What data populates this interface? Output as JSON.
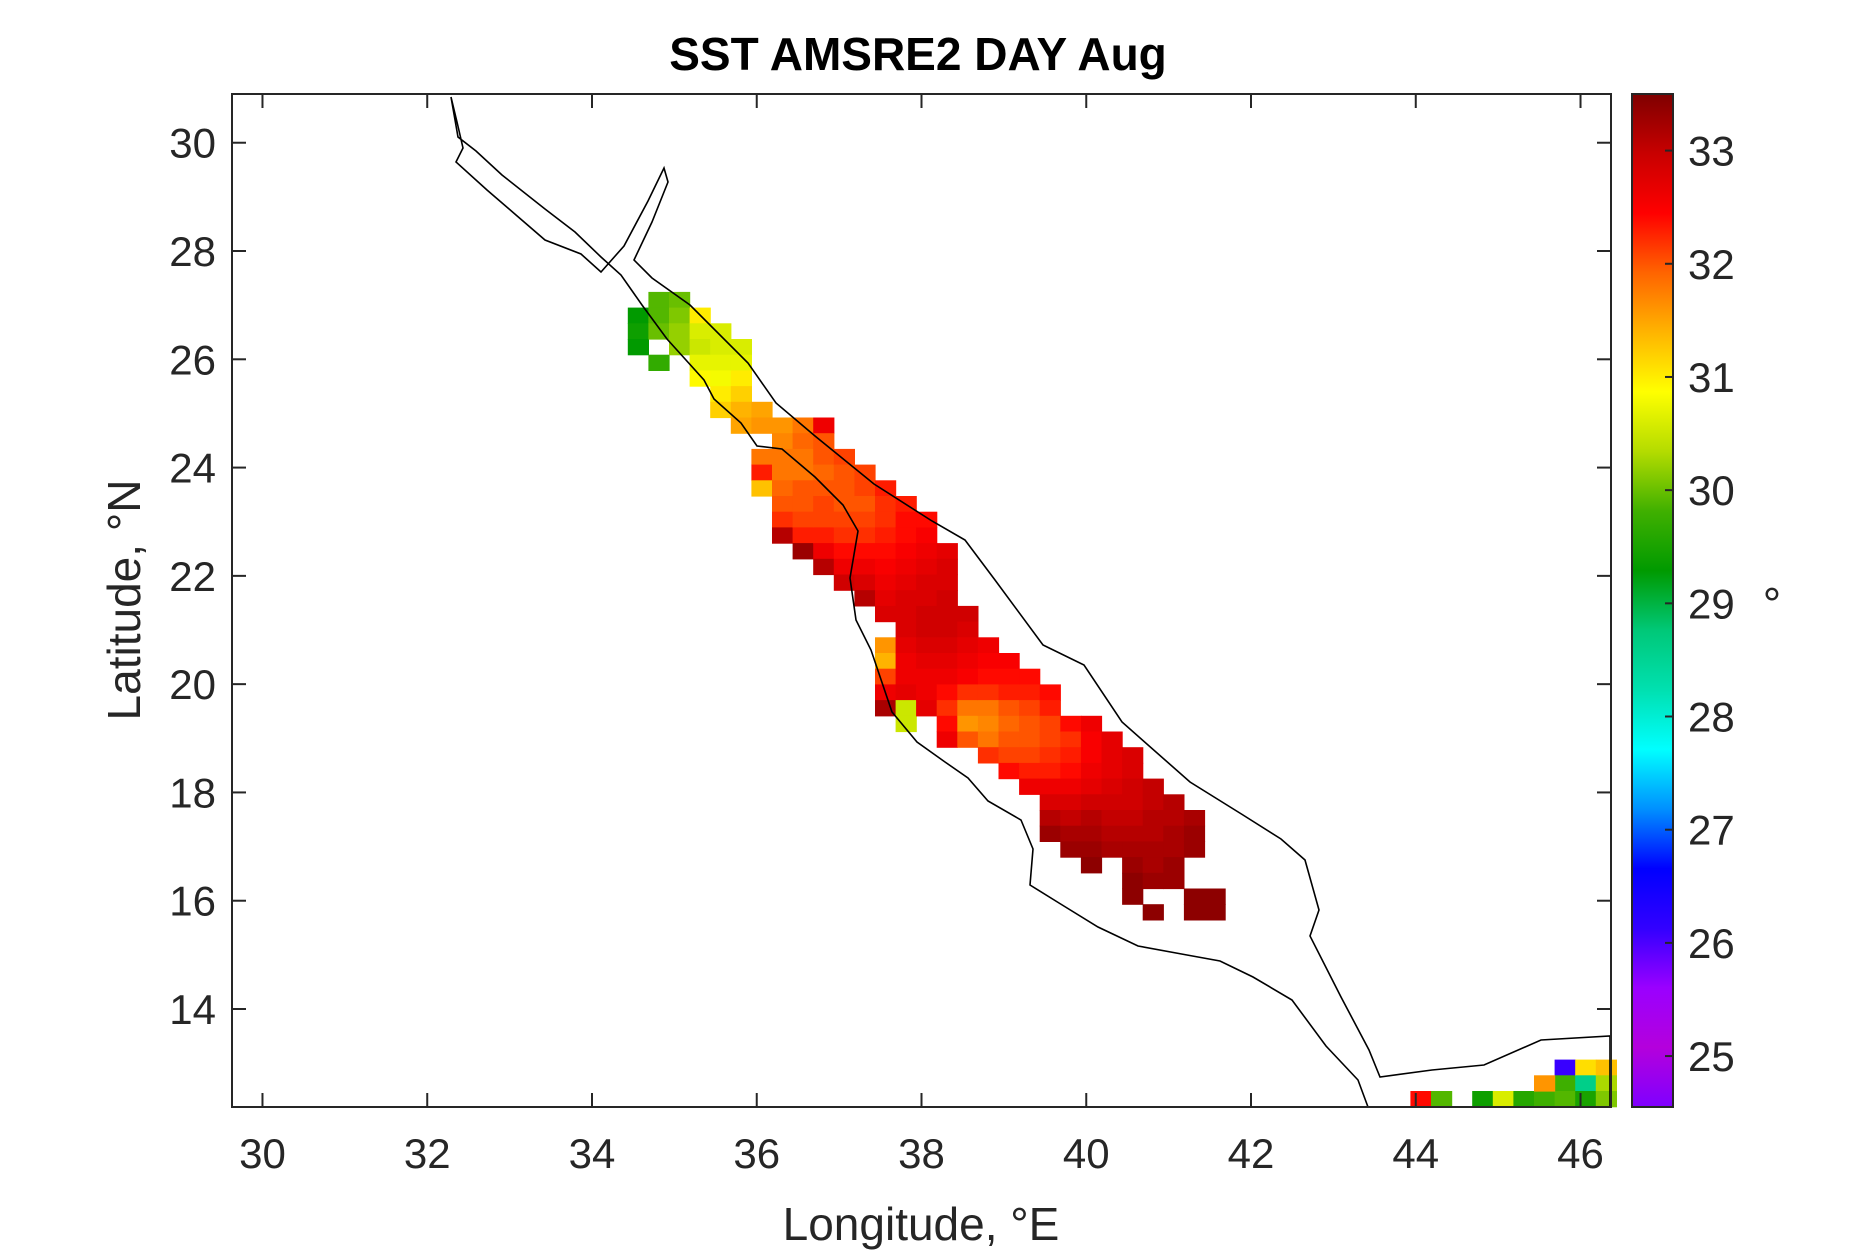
{
  "chart_data": {
    "type": "heatmap",
    "title": "SST AMSRE2 DAY Aug",
    "xlabel": "Longitude, °E",
    "ylabel": "Latitude, °N",
    "xlim": [
      29.63,
      46.37
    ],
    "ylim": [
      12.19,
      30.9
    ],
    "xticks": [
      30,
      32,
      34,
      36,
      38,
      40,
      42,
      44,
      46
    ],
    "yticks": [
      14,
      16,
      18,
      20,
      22,
      24,
      26,
      28,
      30
    ],
    "grid": false,
    "colorbar": {
      "label": "°",
      "clim": [
        24.55,
        33.5
      ],
      "ticks": [
        25,
        26,
        27,
        28,
        29,
        30,
        31,
        32,
        33
      ],
      "colormap": [
        "#7f00ff",
        "#b400dc",
        "#9a00ff",
        "#3200ff",
        "#0000ff",
        "#0090ff",
        "#00ffff",
        "#00e0b0",
        "#00c878",
        "#009a00",
        "#40b000",
        "#b4dc00",
        "#ffff00",
        "#ffb400",
        "#ff6400",
        "#ff0000",
        "#c80000",
        "#7f0000"
      ]
    },
    "cells": [
      [
        34.56,
        26.81,
        29.3
      ],
      [
        34.56,
        26.52,
        29.4
      ],
      [
        34.56,
        26.23,
        29.3
      ],
      [
        34.81,
        27.1,
        29.9
      ],
      [
        34.81,
        26.81,
        29.9
      ],
      [
        34.81,
        26.52,
        30.0
      ],
      [
        34.81,
        25.94,
        29.7
      ],
      [
        35.06,
        27.1,
        30.0
      ],
      [
        35.06,
        26.81,
        30.1
      ],
      [
        35.06,
        26.52,
        30.2
      ],
      [
        35.06,
        26.23,
        30.2
      ],
      [
        35.31,
        26.81,
        31.0
      ],
      [
        35.31,
        26.52,
        30.6
      ],
      [
        35.31,
        26.23,
        30.5
      ],
      [
        35.31,
        25.94,
        30.7
      ],
      [
        35.31,
        25.65,
        30.9
      ],
      [
        35.56,
        26.52,
        30.6
      ],
      [
        35.56,
        26.23,
        30.6
      ],
      [
        35.56,
        25.94,
        30.7
      ],
      [
        35.56,
        25.65,
        30.8
      ],
      [
        35.56,
        25.36,
        31.0
      ],
      [
        35.56,
        25.07,
        31.2
      ],
      [
        35.81,
        26.23,
        30.6
      ],
      [
        35.81,
        25.94,
        30.7
      ],
      [
        35.81,
        25.65,
        31.0
      ],
      [
        35.81,
        25.36,
        31.2
      ],
      [
        35.81,
        25.07,
        31.4
      ],
      [
        35.81,
        24.78,
        31.5
      ],
      [
        36.06,
        25.07,
        31.5
      ],
      [
        36.06,
        24.78,
        31.6
      ],
      [
        36.06,
        24.2,
        31.8
      ],
      [
        36.06,
        23.91,
        32.3
      ],
      [
        36.06,
        23.62,
        31.3
      ],
      [
        36.31,
        24.78,
        31.6
      ],
      [
        36.31,
        24.49,
        31.7
      ],
      [
        36.31,
        24.2,
        31.8
      ],
      [
        36.31,
        23.91,
        31.8
      ],
      [
        36.31,
        23.62,
        31.9
      ],
      [
        36.31,
        23.33,
        32.0
      ],
      [
        36.31,
        23.04,
        32.2
      ],
      [
        36.31,
        22.75,
        33.1
      ],
      [
        36.56,
        24.78,
        31.8
      ],
      [
        36.56,
        24.49,
        31.9
      ],
      [
        36.56,
        24.2,
        31.8
      ],
      [
        36.56,
        23.91,
        31.8
      ],
      [
        36.56,
        23.62,
        32.0
      ],
      [
        36.56,
        23.33,
        32.0
      ],
      [
        36.56,
        23.04,
        32.1
      ],
      [
        36.56,
        22.75,
        32.3
      ],
      [
        36.56,
        22.46,
        33.3
      ],
      [
        36.81,
        24.78,
        32.6
      ],
      [
        36.81,
        24.49,
        32.0
      ],
      [
        36.81,
        24.2,
        32.0
      ],
      [
        36.81,
        23.91,
        31.9
      ],
      [
        36.81,
        23.62,
        32.0
      ],
      [
        36.81,
        23.33,
        32.1
      ],
      [
        36.81,
        23.04,
        32.1
      ],
      [
        36.81,
        22.75,
        32.3
      ],
      [
        36.81,
        22.46,
        32.6
      ],
      [
        36.81,
        22.17,
        33.1
      ],
      [
        37.06,
        24.2,
        32.1
      ],
      [
        37.06,
        23.91,
        32.0
      ],
      [
        37.06,
        23.62,
        32.0
      ],
      [
        37.06,
        23.33,
        32.0
      ],
      [
        37.06,
        23.04,
        32.1
      ],
      [
        37.06,
        22.75,
        32.2
      ],
      [
        37.06,
        22.46,
        32.4
      ],
      [
        37.06,
        22.17,
        32.6
      ],
      [
        37.06,
        21.88,
        32.9
      ],
      [
        37.31,
        23.91,
        32.1
      ],
      [
        37.31,
        23.62,
        32.1
      ],
      [
        37.31,
        23.33,
        32.0
      ],
      [
        37.31,
        23.04,
        32.1
      ],
      [
        37.31,
        22.75,
        32.2
      ],
      [
        37.31,
        22.46,
        32.4
      ],
      [
        37.31,
        22.17,
        32.6
      ],
      [
        37.31,
        21.88,
        32.8
      ],
      [
        37.31,
        21.59,
        33.1
      ],
      [
        37.56,
        23.62,
        32.3
      ],
      [
        37.56,
        23.33,
        32.2
      ],
      [
        37.56,
        23.04,
        32.2
      ],
      [
        37.56,
        22.75,
        32.3
      ],
      [
        37.56,
        22.46,
        32.4
      ],
      [
        37.56,
        22.17,
        32.5
      ],
      [
        37.56,
        21.88,
        32.6
      ],
      [
        37.56,
        21.59,
        32.7
      ],
      [
        37.56,
        21.3,
        32.8
      ],
      [
        37.56,
        20.72,
        31.6
      ],
      [
        37.56,
        20.43,
        31.4
      ],
      [
        37.56,
        20.14,
        32.1
      ],
      [
        37.56,
        19.85,
        32.6
      ],
      [
        37.56,
        19.56,
        33.2
      ],
      [
        37.81,
        23.33,
        32.3
      ],
      [
        37.81,
        23.04,
        32.4
      ],
      [
        37.81,
        22.75,
        32.4
      ],
      [
        37.81,
        22.46,
        32.5
      ],
      [
        37.81,
        22.17,
        32.6
      ],
      [
        37.81,
        21.88,
        32.7
      ],
      [
        37.81,
        21.59,
        32.8
      ],
      [
        37.81,
        21.3,
        32.8
      ],
      [
        37.81,
        21.01,
        32.8
      ],
      [
        37.81,
        20.72,
        32.7
      ],
      [
        37.81,
        20.43,
        32.6
      ],
      [
        37.81,
        20.14,
        32.6
      ],
      [
        37.81,
        19.85,
        32.7
      ],
      [
        37.81,
        19.56,
        30.5
      ],
      [
        37.81,
        19.27,
        30.5
      ],
      [
        38.06,
        23.04,
        32.4
      ],
      [
        38.06,
        22.75,
        32.5
      ],
      [
        38.06,
        22.46,
        32.6
      ],
      [
        38.06,
        22.17,
        32.7
      ],
      [
        38.06,
        21.88,
        32.8
      ],
      [
        38.06,
        21.59,
        32.8
      ],
      [
        38.06,
        21.3,
        32.9
      ],
      [
        38.06,
        21.01,
        32.9
      ],
      [
        38.06,
        20.72,
        32.8
      ],
      [
        38.06,
        20.43,
        32.7
      ],
      [
        38.06,
        20.14,
        32.6
      ],
      [
        38.06,
        19.85,
        32.6
      ],
      [
        38.06,
        19.56,
        32.7
      ],
      [
        38.31,
        22.46,
        32.7
      ],
      [
        38.31,
        22.17,
        32.8
      ],
      [
        38.31,
        21.88,
        32.8
      ],
      [
        38.31,
        21.59,
        32.9
      ],
      [
        38.31,
        21.3,
        32.9
      ],
      [
        38.31,
        21.01,
        32.9
      ],
      [
        38.31,
        20.72,
        32.8
      ],
      [
        38.31,
        20.43,
        32.7
      ],
      [
        38.31,
        20.14,
        32.6
      ],
      [
        38.31,
        19.85,
        32.4
      ],
      [
        38.31,
        19.56,
        32.2
      ],
      [
        38.31,
        19.27,
        32.4
      ],
      [
        38.31,
        18.98,
        32.6
      ],
      [
        38.56,
        21.3,
        32.9
      ],
      [
        38.56,
        21.01,
        32.8
      ],
      [
        38.56,
        20.72,
        32.7
      ],
      [
        38.56,
        20.43,
        32.6
      ],
      [
        38.56,
        20.14,
        32.5
      ],
      [
        38.56,
        19.85,
        32.2
      ],
      [
        38.56,
        19.56,
        31.8
      ],
      [
        38.56,
        19.27,
        31.6
      ],
      [
        38.56,
        18.98,
        32.0
      ],
      [
        38.81,
        20.72,
        32.6
      ],
      [
        38.81,
        20.43,
        32.5
      ],
      [
        38.81,
        20.14,
        32.4
      ],
      [
        38.81,
        19.85,
        32.2
      ],
      [
        38.81,
        19.56,
        31.8
      ],
      [
        38.81,
        19.27,
        31.7
      ],
      [
        38.81,
        18.98,
        31.8
      ],
      [
        38.81,
        18.69,
        32.2
      ],
      [
        39.06,
        20.43,
        32.5
      ],
      [
        39.06,
        20.14,
        32.4
      ],
      [
        39.06,
        19.85,
        32.3
      ],
      [
        39.06,
        19.56,
        32.0
      ],
      [
        39.06,
        19.27,
        31.9
      ],
      [
        39.06,
        18.98,
        32.0
      ],
      [
        39.06,
        18.69,
        32.1
      ],
      [
        39.06,
        18.4,
        32.4
      ],
      [
        39.31,
        20.14,
        32.4
      ],
      [
        39.31,
        19.85,
        32.3
      ],
      [
        39.31,
        19.56,
        32.1
      ],
      [
        39.31,
        19.27,
        32.0
      ],
      [
        39.31,
        18.98,
        32.0
      ],
      [
        39.31,
        18.69,
        32.1
      ],
      [
        39.31,
        18.4,
        32.3
      ],
      [
        39.31,
        18.11,
        32.6
      ],
      [
        39.56,
        19.85,
        32.4
      ],
      [
        39.56,
        19.56,
        32.3
      ],
      [
        39.56,
        19.27,
        32.1
      ],
      [
        39.56,
        18.98,
        32.1
      ],
      [
        39.56,
        18.69,
        32.2
      ],
      [
        39.56,
        18.4,
        32.3
      ],
      [
        39.56,
        18.11,
        32.6
      ],
      [
        39.56,
        17.82,
        32.8
      ],
      [
        39.56,
        17.53,
        33.1
      ],
      [
        39.56,
        17.24,
        33.3
      ],
      [
        39.81,
        19.27,
        32.4
      ],
      [
        39.81,
        18.98,
        32.2
      ],
      [
        39.81,
        18.69,
        32.3
      ],
      [
        39.81,
        18.4,
        32.4
      ],
      [
        39.81,
        18.11,
        32.6
      ],
      [
        39.81,
        17.82,
        32.8
      ],
      [
        39.81,
        17.53,
        33.0
      ],
      [
        39.81,
        17.24,
        33.2
      ],
      [
        39.81,
        16.95,
        33.3
      ],
      [
        40.06,
        19.27,
        32.6
      ],
      [
        40.06,
        18.98,
        32.5
      ],
      [
        40.06,
        18.69,
        32.5
      ],
      [
        40.06,
        18.4,
        32.6
      ],
      [
        40.06,
        18.11,
        32.7
      ],
      [
        40.06,
        17.82,
        32.9
      ],
      [
        40.06,
        17.53,
        33.1
      ],
      [
        40.06,
        17.24,
        33.2
      ],
      [
        40.06,
        16.95,
        33.3
      ],
      [
        40.06,
        16.66,
        33.4
      ],
      [
        40.31,
        18.98,
        32.7
      ],
      [
        40.31,
        18.69,
        32.7
      ],
      [
        40.31,
        18.4,
        32.7
      ],
      [
        40.31,
        18.11,
        32.8
      ],
      [
        40.31,
        17.82,
        32.9
      ],
      [
        40.31,
        17.53,
        33.0
      ],
      [
        40.31,
        17.24,
        33.1
      ],
      [
        40.31,
        16.95,
        33.2
      ],
      [
        40.56,
        18.69,
        32.8
      ],
      [
        40.56,
        18.4,
        32.8
      ],
      [
        40.56,
        18.11,
        32.9
      ],
      [
        40.56,
        17.82,
        32.9
      ],
      [
        40.56,
        17.53,
        33.0
      ],
      [
        40.56,
        17.24,
        33.1
      ],
      [
        40.56,
        16.95,
        33.2
      ],
      [
        40.56,
        16.66,
        33.3
      ],
      [
        40.56,
        16.37,
        33.4
      ],
      [
        40.56,
        16.08,
        33.4
      ],
      [
        40.81,
        18.11,
        33.0
      ],
      [
        40.81,
        17.82,
        33.0
      ],
      [
        40.81,
        17.53,
        33.1
      ],
      [
        40.81,
        17.24,
        33.1
      ],
      [
        40.81,
        16.95,
        33.2
      ],
      [
        40.81,
        16.66,
        33.2
      ],
      [
        40.81,
        16.37,
        33.3
      ],
      [
        40.81,
        15.79,
        33.4
      ],
      [
        41.06,
        17.82,
        33.1
      ],
      [
        41.06,
        17.53,
        33.1
      ],
      [
        41.06,
        17.24,
        33.2
      ],
      [
        41.06,
        16.95,
        33.2
      ],
      [
        41.06,
        16.66,
        33.3
      ],
      [
        41.06,
        16.37,
        33.3
      ],
      [
        41.31,
        17.53,
        33.2
      ],
      [
        41.31,
        17.24,
        33.3
      ],
      [
        41.31,
        16.95,
        33.3
      ],
      [
        41.31,
        16.08,
        33.4
      ],
      [
        41.31,
        15.79,
        33.4
      ],
      [
        41.56,
        16.08,
        33.4
      ],
      [
        41.56,
        15.79,
        33.4
      ],
      [
        44.06,
        12.34,
        32.4
      ],
      [
        44.31,
        12.34,
        29.9
      ],
      [
        44.81,
        12.34,
        29.4
      ],
      [
        45.06,
        12.34,
        30.6
      ],
      [
        45.31,
        12.34,
        29.6
      ],
      [
        45.56,
        12.34,
        29.8
      ],
      [
        45.81,
        12.92,
        26.1
      ],
      [
        45.81,
        12.63,
        29.8
      ],
      [
        45.81,
        12.34,
        29.9
      ],
      [
        45.56,
        12.63,
        31.6
      ],
      [
        46.06,
        12.92,
        31.1
      ],
      [
        46.06,
        12.63,
        28.6
      ],
      [
        46.06,
        12.34,
        29.5
      ],
      [
        46.31,
        12.92,
        31.3
      ],
      [
        46.31,
        12.63,
        30.3
      ],
      [
        46.31,
        12.34,
        30.1
      ]
    ]
  }
}
